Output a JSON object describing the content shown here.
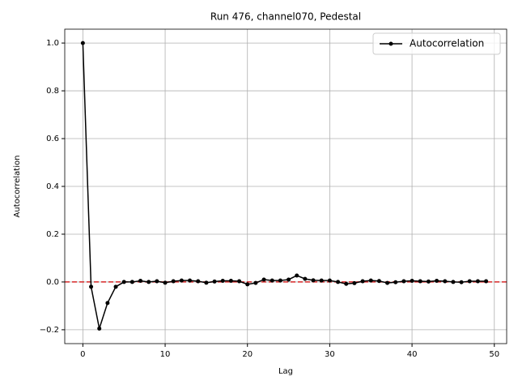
{
  "chart_data": {
    "type": "line",
    "title": "Run 476, channel070, Pedestal",
    "x_label": "Lag",
    "y_label": "Autocorrelation",
    "x": [
      0,
      1,
      2,
      3,
      4,
      5,
      6,
      7,
      8,
      9,
      10,
      11,
      12,
      13,
      14,
      15,
      16,
      17,
      18,
      19,
      20,
      21,
      22,
      23,
      24,
      25,
      26,
      27,
      28,
      29,
      30,
      31,
      32,
      33,
      34,
      35,
      36,
      37,
      38,
      39,
      40,
      41,
      42,
      43,
      44,
      45,
      46,
      47,
      48,
      49
    ],
    "series": [
      {
        "name": "Autocorrelation",
        "color": "#000000",
        "values": [
          1.0,
          -0.02,
          -0.195,
          -0.088,
          -0.02,
          0.0,
          0.0,
          0.005,
          0.0,
          0.003,
          -0.003,
          0.003,
          0.006,
          0.006,
          0.003,
          -0.003,
          0.002,
          0.005,
          0.005,
          0.003,
          -0.01,
          -0.004,
          0.01,
          0.006,
          0.006,
          0.01,
          0.027,
          0.013,
          0.007,
          0.006,
          0.006,
          0.0,
          -0.008,
          -0.005,
          0.003,
          0.006,
          0.004,
          -0.004,
          -0.001,
          0.003,
          0.005,
          0.003,
          0.002,
          0.005,
          0.003,
          0.0,
          -0.001,
          0.003,
          0.003,
          0.003
        ]
      }
    ],
    "reference_line": {
      "y": 0,
      "color": "#d62728"
    },
    "xlim": [
      -2.2,
      51.5
    ],
    "ylim": [
      -0.258,
      1.058
    ],
    "xticks": [
      0,
      10,
      20,
      30,
      40,
      50
    ],
    "yticks": [
      {
        "value": -0.2,
        "label": "−0.2"
      },
      {
        "value": 0,
        "label": "0.0"
      },
      {
        "value": 0.2,
        "label": "0.2"
      },
      {
        "value": 0.4,
        "label": "0.4"
      },
      {
        "value": 0.6,
        "label": "0.6"
      },
      {
        "value": 0.8,
        "label": "0.8"
      },
      {
        "value": 1.0,
        "label": "1.0"
      }
    ],
    "grid": true,
    "legend": "upper right"
  }
}
